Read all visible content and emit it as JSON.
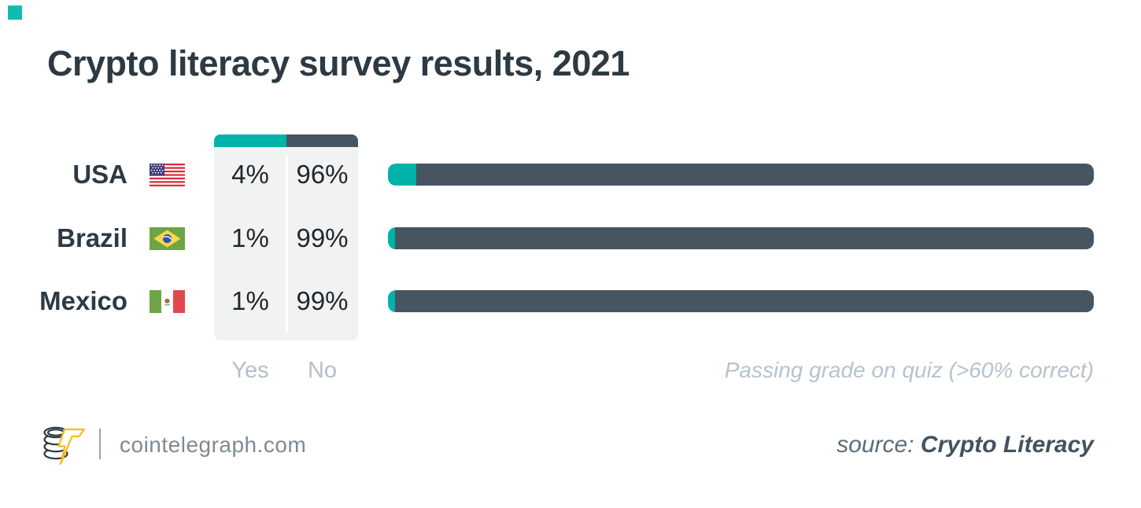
{
  "title": "Crypto literacy survey results, 2021",
  "colors": {
    "accent_yes": "#00b3a9",
    "accent_no": "#475561",
    "table_bg": "#f1f2f2",
    "corner_mark": "#0fbcae",
    "muted_text": "#b3c0ca",
    "title_text": "#2d3a43"
  },
  "table": {
    "legend": {
      "yes": "Yes",
      "no": "No"
    }
  },
  "rows": [
    {
      "country": "USA",
      "flag": "usa-flag",
      "yes": "4%",
      "no": "96%",
      "yes_pct": 4
    },
    {
      "country": "Brazil",
      "flag": "brazil-flag",
      "yes": "1%",
      "no": "99%",
      "yes_pct": 1
    },
    {
      "country": "Mexico",
      "flag": "mexico-flag",
      "yes": "1%",
      "no": "99%",
      "yes_pct": 1
    }
  ],
  "annotation": "Passing grade on quiz (>60% correct)",
  "footer": {
    "site": "cointelegraph.com",
    "source_label": "source:",
    "source_name": "Crypto Literacy"
  },
  "chart_data": {
    "type": "bar",
    "orientation": "horizontal",
    "stacked": true,
    "title": "Crypto literacy survey results, 2021",
    "categories": [
      "USA",
      "Brazil",
      "Mexico"
    ],
    "series": [
      {
        "name": "Yes",
        "values": [
          4,
          1,
          1
        ],
        "color": "#00b3a9"
      },
      {
        "name": "No",
        "values": [
          96,
          99,
          99
        ],
        "color": "#475561"
      }
    ],
    "unit": "%",
    "xlim": [
      0,
      100
    ],
    "grid": false,
    "legend_position": "above-table-left",
    "note": "Passing grade on quiz (>60% correct)"
  }
}
